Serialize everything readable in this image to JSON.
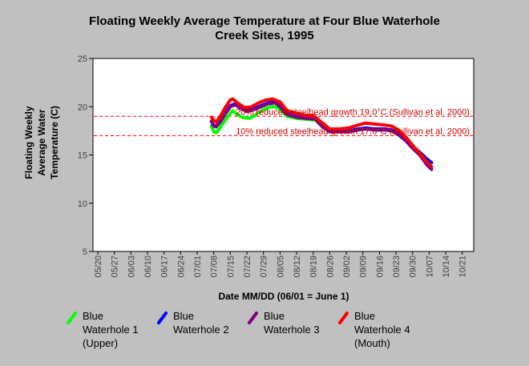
{
  "chart_data": {
    "type": "line",
    "title_lines": [
      "Floating Weekly Average Temperature at Four Blue Waterhole",
      "Creek Sites, 1995"
    ],
    "xlabel": "Date MM/DD (06/01 = June 1)",
    "ylabel_lines": [
      "Floating Weekly",
      "Average Water",
      "Temperature (C)"
    ],
    "ylim": [
      5,
      25
    ],
    "yticks": [
      5,
      10,
      15,
      20,
      25
    ],
    "xlim": [
      "05/20",
      "10/28"
    ],
    "xticks": [
      "05/20",
      "05/27",
      "06/03",
      "06/10",
      "06/17",
      "06/24",
      "07/01",
      "07/08",
      "07/15",
      "07/22",
      "07/29",
      "08/05",
      "08/12",
      "08/19",
      "08/26",
      "09/02",
      "09/09",
      "09/16",
      "09/23",
      "09/30",
      "10/07",
      "10/14",
      "10/21"
    ],
    "grid": false,
    "legend_position": "bottom",
    "thresholds": [
      {
        "value": 19.0,
        "label": "20% reduced steelhead growth 19.0°C (Sullivan et al. 2000)",
        "color": "#ff0000"
      },
      {
        "value": 17.0,
        "label": "10% reduced steelhead growth 17.0°C (Sullivan et al. 2000)",
        "color": "#ff0000"
      }
    ],
    "series": [
      {
        "name": "Blue Waterhole 1 (Upper)",
        "color": "#00ff00",
        "points": [
          [
            "07/07",
            18.0
          ],
          [
            "07/08",
            17.4
          ],
          [
            "07/09",
            17.3
          ],
          [
            "07/10",
            17.6
          ],
          [
            "07/12",
            18.3
          ],
          [
            "07/14",
            19.0
          ],
          [
            "07/16",
            19.6
          ],
          [
            "07/18",
            19.2
          ],
          [
            "07/20",
            18.9
          ],
          [
            "07/23",
            18.8
          ],
          [
            "07/26",
            19.2
          ],
          [
            "07/29",
            19.7
          ],
          [
            "08/01",
            20.0
          ],
          [
            "08/03",
            20.0
          ],
          [
            "08/05",
            19.7
          ],
          [
            "08/08",
            19.0
          ],
          [
            "08/12",
            18.8
          ],
          [
            "08/16",
            18.7
          ],
          [
            "08/20",
            18.6
          ],
          [
            "08/23",
            17.9
          ],
          [
            "08/26",
            17.4
          ],
          [
            "08/30",
            17.4
          ],
          [
            "09/03",
            17.4
          ],
          [
            "09/07",
            17.6
          ],
          [
            "09/10",
            17.7
          ],
          [
            "09/14",
            17.6
          ],
          [
            "09/18",
            17.6
          ],
          [
            "09/21",
            17.6
          ],
          [
            "09/24",
            17.3
          ],
          [
            "09/27",
            16.7
          ],
          [
            "09/30",
            15.9
          ],
          [
            "10/03",
            15.2
          ],
          [
            "10/06",
            14.3
          ],
          [
            "10/08",
            13.6
          ]
        ]
      },
      {
        "name": "Blue Waterhole 2",
        "color": "#0000ff",
        "points": [
          [
            "07/07",
            18.5
          ],
          [
            "07/08",
            18.0
          ],
          [
            "07/09",
            18.0
          ],
          [
            "07/11",
            18.6
          ],
          [
            "07/13",
            19.4
          ],
          [
            "07/15",
            20.1
          ],
          [
            "07/17",
            20.3
          ],
          [
            "07/19",
            20.0
          ],
          [
            "07/22",
            19.6
          ],
          [
            "07/25",
            19.8
          ],
          [
            "07/28",
            20.1
          ],
          [
            "07/31",
            20.4
          ],
          [
            "08/03",
            20.5
          ],
          [
            "08/05",
            20.1
          ],
          [
            "08/08",
            19.3
          ],
          [
            "08/12",
            19.0
          ],
          [
            "08/16",
            18.8
          ],
          [
            "08/20",
            18.8
          ],
          [
            "08/23",
            18.0
          ],
          [
            "08/26",
            17.5
          ],
          [
            "08/30",
            17.5
          ],
          [
            "09/03",
            17.5
          ],
          [
            "09/07",
            17.7
          ],
          [
            "09/10",
            17.8
          ],
          [
            "09/14",
            17.7
          ],
          [
            "09/18",
            17.7
          ],
          [
            "09/21",
            17.6
          ],
          [
            "09/24",
            17.2
          ],
          [
            "09/27",
            16.6
          ],
          [
            "09/30",
            15.9
          ],
          [
            "10/03",
            15.3
          ],
          [
            "10/06",
            14.6
          ],
          [
            "10/08",
            14.2
          ]
        ]
      },
      {
        "name": "Blue Waterhole 3",
        "color": "#800080",
        "points": [
          [
            "07/07",
            18.5
          ],
          [
            "07/08",
            18.0
          ],
          [
            "07/09",
            17.9
          ],
          [
            "07/11",
            18.5
          ],
          [
            "07/13",
            19.3
          ],
          [
            "07/15",
            20.0
          ],
          [
            "07/17",
            20.2
          ],
          [
            "07/19",
            19.9
          ],
          [
            "07/22",
            19.5
          ],
          [
            "07/25",
            19.7
          ],
          [
            "07/28",
            20.0
          ],
          [
            "07/31",
            20.3
          ],
          [
            "08/03",
            20.4
          ],
          [
            "08/05",
            20.0
          ],
          [
            "08/08",
            19.2
          ],
          [
            "08/12",
            18.9
          ],
          [
            "08/16",
            18.8
          ],
          [
            "08/20",
            18.7
          ],
          [
            "08/23",
            17.9
          ],
          [
            "08/26",
            17.4
          ],
          [
            "08/30",
            17.4
          ],
          [
            "09/03",
            17.4
          ],
          [
            "09/07",
            17.6
          ],
          [
            "09/10",
            17.7
          ],
          [
            "09/14",
            17.6
          ],
          [
            "09/18",
            17.6
          ],
          [
            "09/21",
            17.5
          ],
          [
            "09/24",
            17.1
          ],
          [
            "09/27",
            16.5
          ],
          [
            "09/30",
            15.7
          ],
          [
            "10/03",
            15.0
          ],
          [
            "10/06",
            14.0
          ],
          [
            "10/08",
            13.5
          ]
        ]
      },
      {
        "name": "Blue Waterhole 4 (Mouth)",
        "color": "#ff0000",
        "points": [
          [
            "07/07",
            18.9
          ],
          [
            "07/08",
            18.6
          ],
          [
            "07/09",
            18.4
          ],
          [
            "07/11",
            19.1
          ],
          [
            "07/13",
            20.0
          ],
          [
            "07/15",
            20.7
          ],
          [
            "07/16",
            20.8
          ],
          [
            "07/18",
            20.4
          ],
          [
            "07/21",
            19.9
          ],
          [
            "07/24",
            20.0
          ],
          [
            "07/27",
            20.4
          ],
          [
            "07/30",
            20.7
          ],
          [
            "08/02",
            20.8
          ],
          [
            "08/05",
            20.5
          ],
          [
            "08/08",
            19.6
          ],
          [
            "08/12",
            19.3
          ],
          [
            "08/16",
            19.1
          ],
          [
            "08/19",
            19.1
          ],
          [
            "08/23",
            18.3
          ],
          [
            "08/26",
            17.7
          ],
          [
            "08/30",
            17.7
          ],
          [
            "09/03",
            17.8
          ],
          [
            "09/07",
            18.1
          ],
          [
            "09/10",
            18.3
          ],
          [
            "09/14",
            18.2
          ],
          [
            "09/18",
            18.1
          ],
          [
            "09/21",
            18.0
          ],
          [
            "09/24",
            17.6
          ],
          [
            "09/27",
            16.9
          ],
          [
            "09/30",
            16.0
          ],
          [
            "10/03",
            15.2
          ],
          [
            "10/06",
            14.3
          ],
          [
            "10/08",
            13.8
          ]
        ]
      }
    ],
    "legend": [
      {
        "lines": [
          "Blue",
          "Waterhole 1",
          "(Upper)"
        ],
        "color": "#00ff00"
      },
      {
        "lines": [
          "Blue",
          "Waterhole 2"
        ],
        "color": "#0000ff"
      },
      {
        "lines": [
          "Blue",
          "Waterhole 3"
        ],
        "color": "#800080"
      },
      {
        "lines": [
          "Blue",
          "Waterhole 4",
          "(Mouth)"
        ],
        "color": "#ff0000"
      }
    ]
  }
}
